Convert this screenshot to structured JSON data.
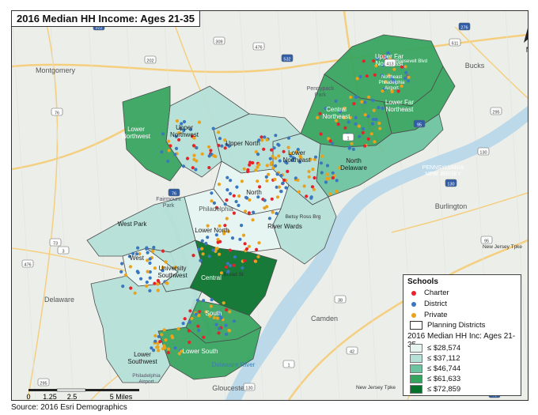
{
  "title": "2016 Median HH Income: Ages 21-35",
  "source": "Source: 2016 Esri Demographics",
  "north_label": "N",
  "colors": {
    "c1": "#e6f5f2",
    "c2": "#b4e0d7",
    "c3": "#6cc39f",
    "c4": "#35a45e",
    "c5": "#06712b",
    "charter": "#e4242a",
    "district": "#3b77be",
    "private": "#e9a21b",
    "district_border": "#4d4d4d",
    "road": "#f5cf80",
    "water": "#bcd9ea"
  },
  "legend": {
    "schools_title": "Schools",
    "charter": "Charter",
    "district": "District",
    "private": "Private",
    "planning": "Planning Districts",
    "income_title": "2016 Median HH Inc: Ages 21-35",
    "classes": [
      "≤ $28,574",
      "≤ $37,112",
      "≤ $46,744",
      "≤ $61,633",
      "≤ $72,859"
    ]
  },
  "scale": {
    "ticks": [
      "0",
      "1.25",
      "2.5",
      "5 Miles"
    ]
  },
  "districts": [
    {
      "name": "Upper Far\nNortheast",
      "cls": 4
    },
    {
      "name": "Lower Far\nNortheast",
      "cls": 4
    },
    {
      "name": "Central\nNortheast",
      "cls": 4
    },
    {
      "name": "North\nDelaware",
      "cls": 3
    },
    {
      "name": "Lower\nNortheast",
      "cls": 2
    },
    {
      "name": "Upper North",
      "cls": 2
    },
    {
      "name": "Upper\nNorthwest",
      "cls": 2
    },
    {
      "name": "Lower\nNorthwest",
      "cls": 4
    },
    {
      "name": "North",
      "cls": 1
    },
    {
      "name": "River Wards",
      "cls": 2
    },
    {
      "name": "Lower North",
      "cls": 1
    },
    {
      "name": "West Park",
      "cls": 2
    },
    {
      "name": "West",
      "cls": 1
    },
    {
      "name": "University\nSouthwest",
      "cls": 2
    },
    {
      "name": "Central",
      "cls": 5
    },
    {
      "name": "South",
      "cls": 4
    },
    {
      "name": "Lower South",
      "cls": 4
    },
    {
      "name": "Lower\nSouthwest",
      "cls": 2
    }
  ],
  "places": [
    "Montgomery",
    "Bucks",
    "Burlington",
    "Delaware",
    "Camden",
    "Gloucester",
    "Philadelphia",
    "Pennypack\nPark",
    "Fairmount\nPark",
    "Northeast\nPhiladelphia\nAirport",
    "Philadelphia\nAirport",
    "Delaware River",
    "PENNSYLVANIA\nNEW JERSEY",
    "Betsy Ross Brg",
    "New Jersey Tpke",
    "New Jersey Tpke",
    "Roosevelt Blvd",
    "Broad St"
  ],
  "route_shields": [
    "276",
    "476",
    "76",
    "95",
    "295",
    "1",
    "130",
    "38",
    "73",
    "30",
    "130",
    "42",
    "420",
    "3",
    "1",
    "70",
    "295",
    "202",
    "73",
    "309",
    "611",
    "532",
    "413",
    "130",
    "76",
    "95",
    "476",
    "322"
  ]
}
